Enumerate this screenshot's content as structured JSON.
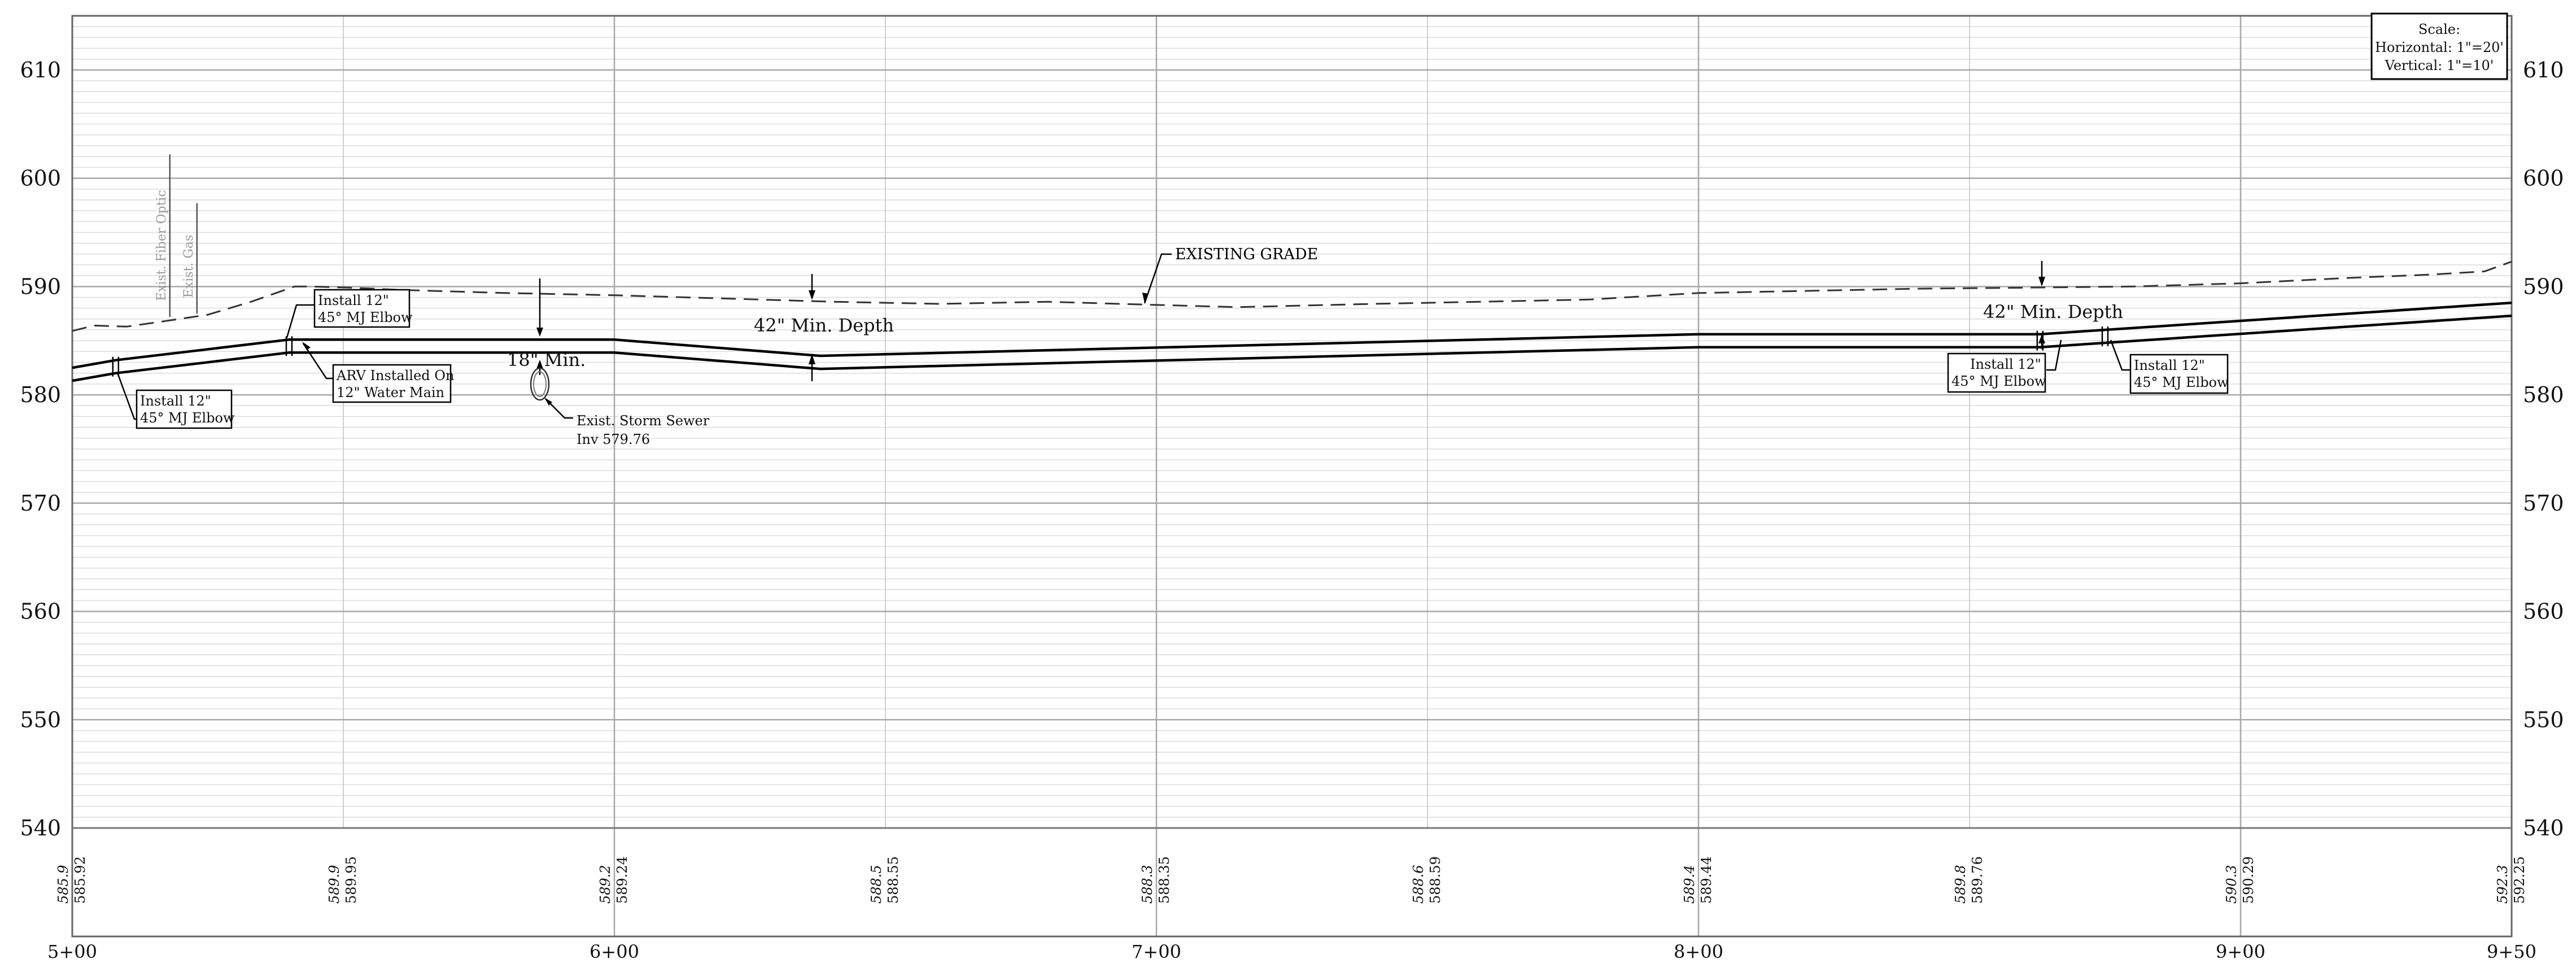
{
  "scale": {
    "title": "Scale:",
    "horizontal": "Horizontal: 1\"=20'",
    "vertical": "Vertical: 1\"=10'"
  },
  "chart_data": {
    "type": "line",
    "x_range_ft": [
      500,
      950
    ],
    "y_range_elev": [
      540,
      615
    ],
    "elevation_ticks": [
      540,
      550,
      560,
      570,
      580,
      590,
      600,
      610
    ],
    "elevation_labels": [
      "540",
      "550",
      "560",
      "570",
      "580",
      "590",
      "600",
      "610"
    ],
    "station_ticks": [
      500,
      600,
      700,
      800,
      900,
      950
    ],
    "station_labels": [
      "5+00",
      "6+00",
      "7+00",
      "8+00",
      "9+00",
      "9+50"
    ],
    "grade_readouts": [
      {
        "station": 500,
        "existing": "585.9",
        "proposed": "585.92"
      },
      {
        "station": 550,
        "existing": "589.9",
        "proposed": "589.95"
      },
      {
        "station": 600,
        "existing": "589.2",
        "proposed": "589.24"
      },
      {
        "station": 650,
        "existing": "588.5",
        "proposed": "588.55"
      },
      {
        "station": 700,
        "existing": "588.3",
        "proposed": "588.35"
      },
      {
        "station": 750,
        "existing": "588.6",
        "proposed": "588.59"
      },
      {
        "station": 800,
        "existing": "589.4",
        "proposed": "589.44"
      },
      {
        "station": 850,
        "existing": "589.8",
        "proposed": "589.76"
      },
      {
        "station": 900,
        "existing": "590.3",
        "proposed": "590.29"
      },
      {
        "station": 950,
        "existing": "592.3",
        "proposed": "592.25"
      }
    ],
    "existing_grade": {
      "x": [
        500,
        504,
        510,
        517,
        525,
        533,
        541,
        544,
        551,
        560,
        580,
        600,
        620,
        640,
        660,
        680,
        700,
        715,
        740,
        760,
        780,
        800,
        820,
        840,
        860,
        880,
        900,
        920,
        935,
        945,
        950
      ],
      "y": [
        585.9,
        586.4,
        586.3,
        586.8,
        587.4,
        588.6,
        590.0,
        590.0,
        589.9,
        589.7,
        589.4,
        589.2,
        588.9,
        588.6,
        588.4,
        588.6,
        588.3,
        588.1,
        588.4,
        588.6,
        588.8,
        589.4,
        589.6,
        589.8,
        589.9,
        590.0,
        590.3,
        590.8,
        591.1,
        591.4,
        592.3
      ]
    },
    "pipe_top": {
      "x": [
        500,
        508,
        540,
        600,
        638,
        800,
        863,
        950
      ],
      "y": [
        582.5,
        583.2,
        585.1,
        585.1,
        583.6,
        585.6,
        585.6,
        588.5
      ]
    },
    "pipe_bottom": {
      "x": [
        500,
        508,
        540,
        600,
        638,
        800,
        863,
        950
      ],
      "y": [
        581.3,
        582.0,
        583.9,
        583.9,
        582.4,
        584.4,
        584.4,
        587.3
      ]
    },
    "existing_utilities": [
      {
        "name": "Exist. Fiber Optic",
        "station": 518,
        "top_elev": 602.2,
        "bottom_elev": 587.2
      },
      {
        "name": "Exist. Gas",
        "station": 523,
        "top_elev": 597.7,
        "bottom_elev": 587.5
      }
    ],
    "labels": {
      "existing_grade": "EXISTING GRADE",
      "min_depth_left": "42\" Min. Depth",
      "min_depth_right": "42\" Min. Depth",
      "clearance": "18\" Min."
    },
    "callouts": [
      {
        "id": "elbow-1",
        "station": 508,
        "lines": [
          "Install 12\"",
          "45° MJ Elbow"
        ]
      },
      {
        "id": "elbow-2",
        "station": 540,
        "lines": [
          "Install 12\"",
          "45° MJ Elbow"
        ]
      },
      {
        "id": "arv",
        "station": 543,
        "lines": [
          "ARV Installed On",
          "12\" Water Main"
        ]
      },
      {
        "id": "elbow-3",
        "station": 863,
        "lines": [
          "Install 12\"",
          "45° MJ Elbow"
        ]
      },
      {
        "id": "elbow-4",
        "station": 875,
        "lines": [
          "Install 12\"",
          "45° MJ Elbow"
        ]
      }
    ],
    "storm_sewer": {
      "station": 586,
      "elevation": 580.9,
      "lines": [
        "Exist. Storm Sewer",
        "Inv 579.76"
      ]
    }
  }
}
